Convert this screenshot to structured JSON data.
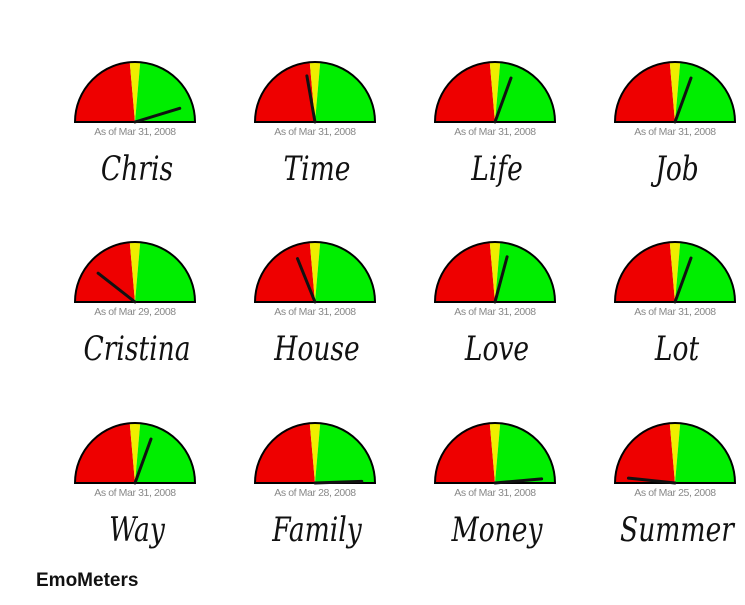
{
  "page": {
    "title": "EmoMeters"
  },
  "colors": {
    "negative": "#ee0000",
    "neutral": "#eeee00",
    "positive": "#00ee00",
    "needle": "#111111",
    "date_text": "#888888"
  },
  "meters": [
    {
      "name": "Chris",
      "date": "As of Mar 31, 2008",
      "needle_deg": 73
    },
    {
      "name": "Time",
      "date": "As of Mar 31, 2008",
      "needle_deg": -10
    },
    {
      "name": "Life",
      "date": "As of Mar 31, 2008",
      "needle_deg": 20
    },
    {
      "name": "Job",
      "date": "As of Mar 31, 2008",
      "needle_deg": 20
    },
    {
      "name": "Cristina",
      "date": "As of Mar 29, 2008",
      "needle_deg": -52
    },
    {
      "name": "House",
      "date": "As of Mar 31, 2008",
      "needle_deg": -22
    },
    {
      "name": "Love",
      "date": "As of Mar 31, 2008",
      "needle_deg": 15
    },
    {
      "name": "Lot",
      "date": "As of Mar 31, 2008",
      "needle_deg": 20
    },
    {
      "name": "Way",
      "date": "As of Mar 31, 2008",
      "needle_deg": 20
    },
    {
      "name": "Family",
      "date": "As of Mar 28, 2008",
      "needle_deg": 88
    },
    {
      "name": "Money",
      "date": "As of Mar 31, 2008",
      "needle_deg": 85
    },
    {
      "name": "Summer",
      "date": "As of Mar 25, 2008",
      "needle_deg": -84
    }
  ]
}
